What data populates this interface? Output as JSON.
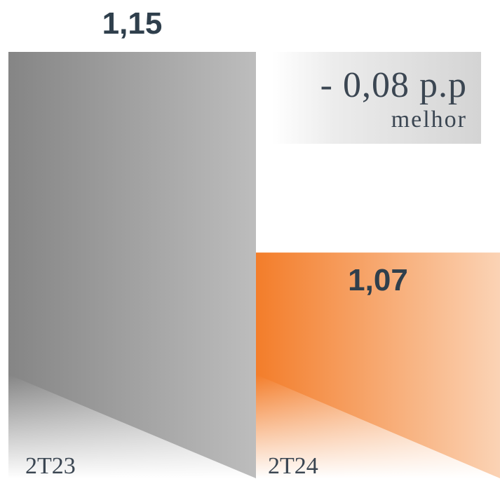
{
  "chart_data": {
    "type": "bar",
    "categories": [
      "2T23",
      "2T24"
    ],
    "values": [
      1.15,
      1.07
    ],
    "value_labels": [
      "1,15",
      "1,07"
    ],
    "title": "",
    "xlabel": "",
    "ylabel": "",
    "ylim": [
      0.98,
      1.15
    ],
    "grid": false,
    "colors": [
      "#888888",
      "#f37d2a"
    ],
    "annotation": {
      "delta": "- 0,08 p.p",
      "note": "melhor"
    }
  }
}
